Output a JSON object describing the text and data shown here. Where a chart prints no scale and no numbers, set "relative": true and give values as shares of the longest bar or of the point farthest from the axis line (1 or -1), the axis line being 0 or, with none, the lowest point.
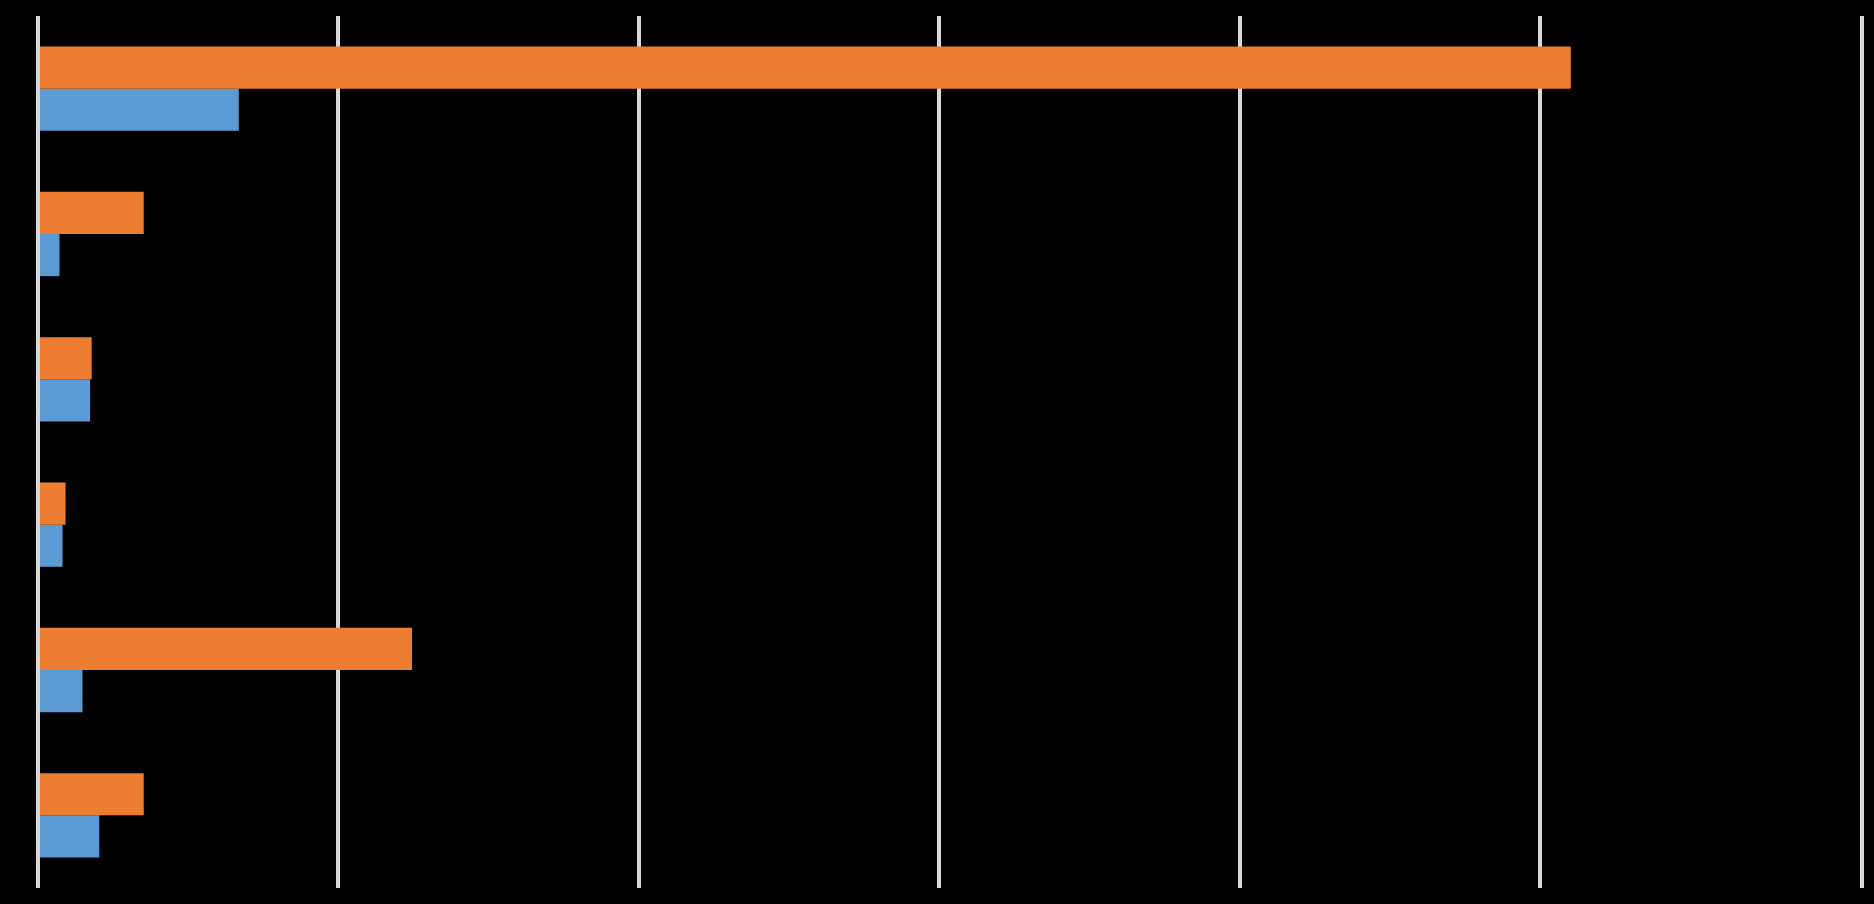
{
  "chart_data": {
    "type": "bar",
    "orientation": "horizontal",
    "relative": true,
    "grid": "x",
    "legend": false,
    "categories": [
      null,
      null,
      null,
      null,
      null,
      null
    ],
    "series": [
      {
        "color": "#ed7d31",
        "values": [
          1,
          0.069,
          0.035,
          0.018,
          0.244,
          0.069
        ]
      },
      {
        "color": "#5b9bd5",
        "values": [
          0.131,
          0.014,
          0.034,
          0.016,
          0.029,
          0.04
        ]
      }
    ]
  }
}
